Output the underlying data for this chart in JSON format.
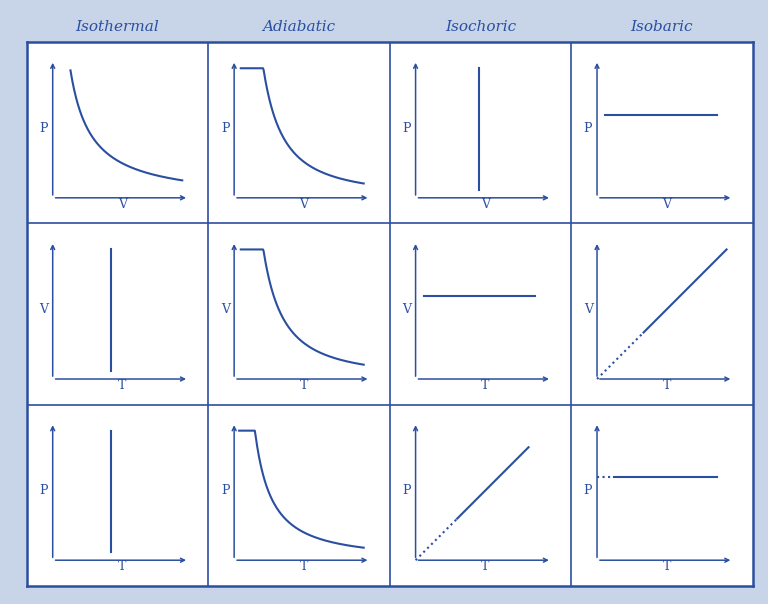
{
  "color": "#2b4fa0",
  "bg_color": "#ffffff",
  "outer_bg": "#c8d4e8",
  "col_headers": [
    "Isothermal",
    "Adiabatic",
    "Isochoric",
    "Isobaric"
  ],
  "row_axes": [
    [
      "P",
      "V"
    ],
    [
      "V",
      "T"
    ],
    [
      "P",
      "T"
    ]
  ],
  "title_fontsize": 11,
  "label_fontsize": 9,
  "figsize": [
    7.68,
    6.04
  ],
  "dpi": 100
}
